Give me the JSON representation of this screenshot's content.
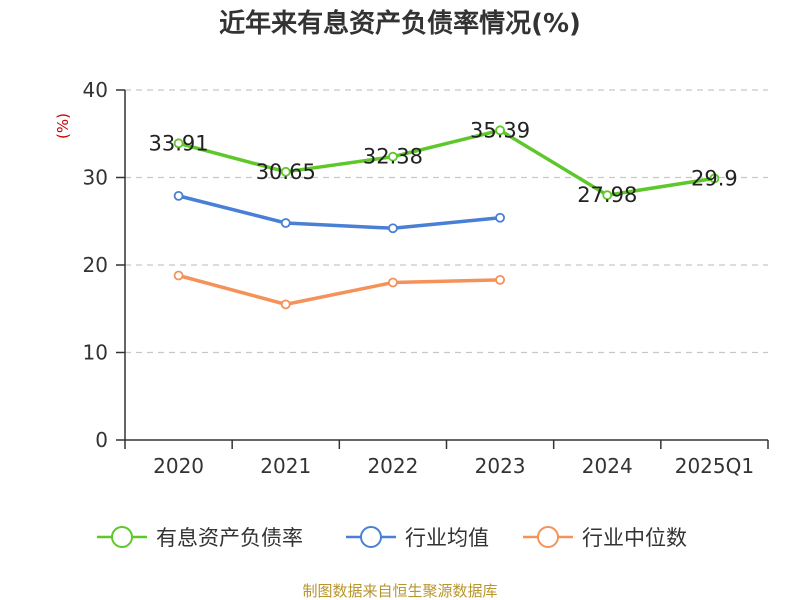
{
  "chart_data": {
    "type": "line",
    "title": "近年来有息资产负债率情况(%)",
    "ylabel": "(%)",
    "xlabel": "",
    "categories": [
      "2020",
      "2021",
      "2022",
      "2023",
      "2024",
      "2025Q1"
    ],
    "ylim": [
      0,
      40
    ],
    "yticks": [
      0,
      10,
      20,
      30,
      40
    ],
    "grid": true,
    "legend_position": "bottom",
    "series": [
      {
        "name": "有息资产负债率",
        "color": "#5ec72a",
        "values": [
          33.91,
          30.65,
          32.38,
          35.39,
          27.98,
          29.9
        ],
        "labels": [
          "33.91",
          "30.65",
          "32.38",
          "35.39",
          "27.98",
          "29.9"
        ]
      },
      {
        "name": "行业均值",
        "color": "#4a7fd6",
        "values": [
          27.9,
          24.8,
          24.2,
          25.4,
          null,
          null
        ]
      },
      {
        "name": "行业中位数",
        "color": "#f5925a",
        "values": [
          18.8,
          15.5,
          18.0,
          18.3,
          null,
          null
        ]
      }
    ],
    "source": "制图数据来自恒生聚源数据库"
  }
}
